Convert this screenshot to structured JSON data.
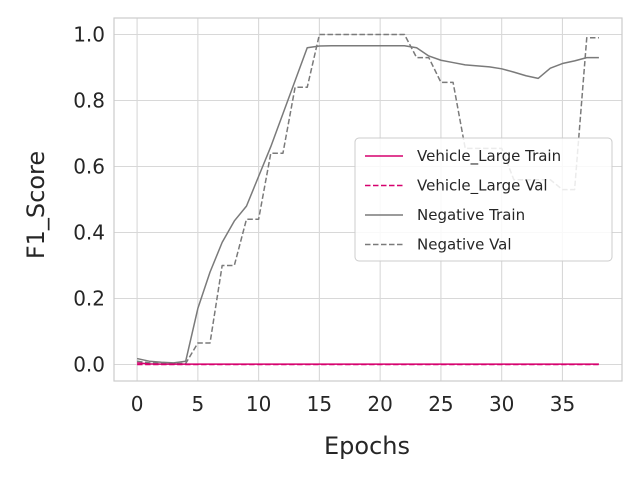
{
  "chart_data": {
    "type": "line",
    "title": "",
    "xlabel": "Epochs",
    "ylabel": "F1_Score",
    "xlim": [
      -1.9,
      39.9
    ],
    "ylim": [
      -0.05,
      1.05
    ],
    "xticks": [
      0,
      5,
      10,
      15,
      20,
      25,
      30,
      35
    ],
    "xtick_labels": [
      "0",
      "5",
      "10",
      "15",
      "20",
      "25",
      "30",
      "35"
    ],
    "yticks": [
      0.0,
      0.2,
      0.4,
      0.6,
      0.8,
      1.0
    ],
    "ytick_labels": [
      "0.0",
      "0.2",
      "0.4",
      "0.6",
      "0.8",
      "1.0"
    ],
    "grid": true,
    "legend_position": "center-right",
    "x": [
      0,
      1,
      2,
      3,
      4,
      5,
      6,
      7,
      8,
      9,
      10,
      11,
      12,
      13,
      14,
      15,
      16,
      17,
      18,
      19,
      20,
      21,
      22,
      23,
      24,
      25,
      26,
      27,
      28,
      29,
      30,
      31,
      32,
      33,
      34,
      35,
      36,
      37,
      38
    ],
    "series": [
      {
        "name": "Vehicle_Large Train",
        "color": "#d6006e",
        "dash": "solid",
        "values": [
          0.005,
          0.002,
          0.001,
          0.001,
          0.001,
          0.001,
          0.001,
          0.001,
          0.001,
          0.001,
          0.001,
          0.001,
          0.001,
          0.001,
          0.001,
          0.001,
          0.001,
          0.001,
          0.001,
          0.001,
          0.001,
          0.001,
          0.001,
          0.001,
          0.001,
          0.001,
          0.001,
          0.001,
          0.001,
          0.001,
          0.001,
          0.001,
          0.001,
          0.001,
          0.001,
          0.001,
          0.001,
          0.001,
          0.001
        ]
      },
      {
        "name": "Vehicle_Large Val",
        "color": "#d6006e",
        "dash": "dashed",
        "values": [
          0.0,
          0.0,
          0.0,
          0.0,
          0.0,
          0.0,
          0.0,
          0.0,
          0.0,
          0.0,
          0.0,
          0.0,
          0.0,
          0.0,
          0.0,
          0.0,
          0.0,
          0.0,
          0.0,
          0.0,
          0.0,
          0.0,
          0.0,
          0.0,
          0.0,
          0.0,
          0.0,
          0.0,
          0.0,
          0.0,
          0.0,
          0.0,
          0.0,
          0.0,
          0.0,
          0.0,
          0.0,
          0.0,
          0.0
        ]
      },
      {
        "name": "Negative Train",
        "color": "#7a7a7a",
        "dash": "solid",
        "values": [
          0.018,
          0.01,
          0.007,
          0.005,
          0.01,
          0.17,
          0.28,
          0.37,
          0.435,
          0.48,
          0.57,
          0.66,
          0.76,
          0.86,
          0.96,
          0.965,
          0.966,
          0.966,
          0.966,
          0.966,
          0.966,
          0.966,
          0.966,
          0.96,
          0.935,
          0.922,
          0.915,
          0.908,
          0.905,
          0.902,
          0.896,
          0.886,
          0.875,
          0.867,
          0.898,
          0.912,
          0.92,
          0.93,
          0.93
        ]
      },
      {
        "name": "Negative Val",
        "color": "#7a7a7a",
        "dash": "dashed",
        "values": [
          0.01,
          0.005,
          0.003,
          0.003,
          0.003,
          0.065,
          0.065,
          0.3,
          0.3,
          0.44,
          0.44,
          0.64,
          0.64,
          0.84,
          0.84,
          1.0,
          1.0,
          1.0,
          1.0,
          1.0,
          1.0,
          1.0,
          1.0,
          0.93,
          0.93,
          0.855,
          0.855,
          0.655,
          0.655,
          0.655,
          0.655,
          0.56,
          0.56,
          0.56,
          0.56,
          0.53,
          0.53,
          0.99,
          0.99
        ]
      }
    ]
  },
  "colors": {
    "background": "#ffffff",
    "plot_area": "#ffffff",
    "grid": "#d8d8d8",
    "frame": "#cccccc",
    "legend_border": "#cccccc"
  }
}
